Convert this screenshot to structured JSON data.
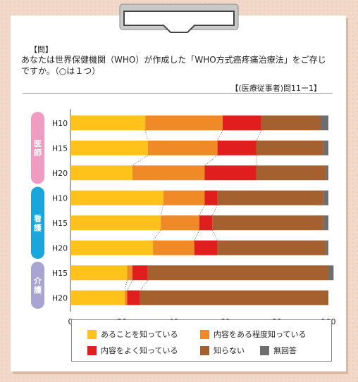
{
  "question": {
    "label": "【問】",
    "text": "あなたは世界保健機関（WHO）が作成した「WHO方式癌疼痛治療法」をご存じですか。（○は１つ）",
    "source": "【(医療従事者)問11ー1】"
  },
  "colors": {
    "know_exists": "#ffc21a",
    "know_some": "#f08a26",
    "know_well": "#e01e1e",
    "dont_know": "#a4602f",
    "no_answer": "#6e6e6e",
    "group_ishi": "#ef9cc0",
    "group_kango": "#18a6dc",
    "group_kaigo": "#a9a5d3"
  },
  "chart_data": {
    "type": "bar",
    "orientation": "horizontal",
    "stacked": true,
    "groups": [
      {
        "name": "医師",
        "rows": [
          "H10",
          "H15",
          "H20"
        ]
      },
      {
        "name": "看護",
        "rows": [
          "H10",
          "H15",
          "H20"
        ]
      },
      {
        "name": "介護",
        "rows": [
          "H15",
          "H20"
        ]
      }
    ],
    "categories": [
      "H10",
      "H15",
      "H20",
      "H10",
      "H15",
      "H20",
      "H15",
      "H20"
    ],
    "series": [
      {
        "name": "あることを知っている",
        "color_key": "know_exists",
        "values": [
          29,
          30,
          24,
          36,
          35,
          32,
          22,
          21
        ]
      },
      {
        "name": "内容をある程度知っている",
        "color_key": "know_some",
        "values": [
          30,
          27,
          28,
          16,
          15,
          16,
          2,
          1
        ]
      },
      {
        "name": "内容をよく知っている",
        "color_key": "know_well",
        "values": [
          15,
          15,
          20,
          5,
          5,
          9,
          6,
          5
        ]
      },
      {
        "name": "知らない",
        "color_key": "dont_know",
        "values": [
          23,
          26,
          27,
          41,
          43,
          42,
          70,
          73
        ]
      },
      {
        "name": "無回答",
        "color_key": "no_answer",
        "values": [
          3,
          2,
          1,
          2,
          2,
          1,
          2,
          0
        ]
      }
    ],
    "xlim": [
      0,
      100
    ],
    "xticks": [
      0,
      20,
      40,
      60,
      80,
      100
    ],
    "grid": false,
    "legend_position": "bottom"
  }
}
